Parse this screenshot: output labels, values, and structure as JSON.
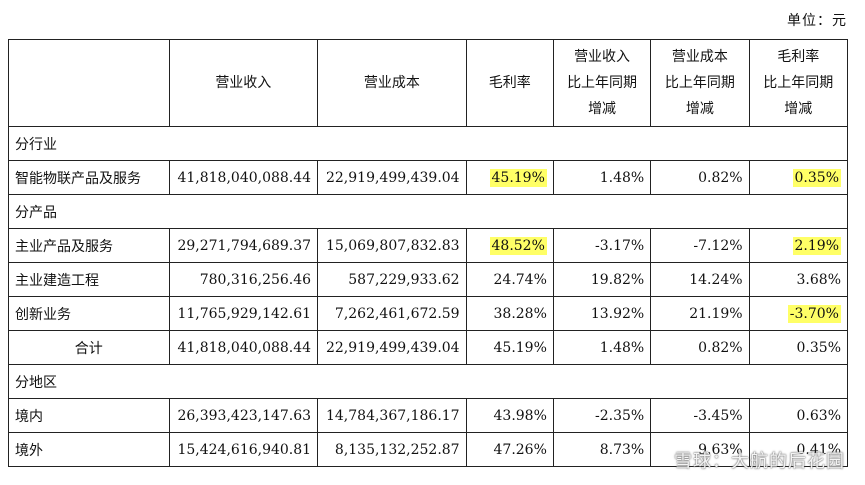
{
  "unit_label": "单位：元",
  "headers": [
    "",
    "营业收入",
    "营业成本",
    "毛利率",
    "营业收入\n比上年同期\n增减",
    "营业成本\n比上年同期\n增减",
    "毛利率\n比上年同期\n增减"
  ],
  "sections": [
    {
      "title": "分行业",
      "rows": [
        {
          "label": "智能物联产品及服务",
          "revenue": "41,818,040,088.44",
          "cost": "22,919,499,439.04",
          "margin": "45.19%",
          "rev_change": "1.48%",
          "cost_change": "0.82%",
          "margin_change": "0.35%",
          "hl_margin": true,
          "hl_margin_change": true
        }
      ]
    },
    {
      "title": "分产品",
      "rows": [
        {
          "label": "主业产品及服务",
          "revenue": "29,271,794,689.37",
          "cost": "15,069,807,832.83",
          "margin": "48.52%",
          "rev_change": "-3.17%",
          "cost_change": "-7.12%",
          "margin_change": "2.19%",
          "hl_margin": true,
          "hl_margin_change": true
        },
        {
          "label": "主业建造工程",
          "revenue": "780,316,256.46",
          "cost": "587,229,933.62",
          "margin": "24.74%",
          "rev_change": "19.82%",
          "cost_change": "14.24%",
          "margin_change": "3.68%"
        },
        {
          "label": "创新业务",
          "revenue": "11,765,929,142.61",
          "cost": "7,262,461,672.59",
          "margin": "38.28%",
          "rev_change": "13.92%",
          "cost_change": "21.19%",
          "margin_change": "-3.70%",
          "hl_margin_change": true
        },
        {
          "label": "合计",
          "revenue": "41,818,040,088.44",
          "cost": "22,919,499,439.04",
          "margin": "45.19%",
          "rev_change": "1.48%",
          "cost_change": "0.82%",
          "margin_change": "0.35%",
          "is_total": true
        }
      ]
    },
    {
      "title": "分地区",
      "rows": [
        {
          "label": "境内",
          "revenue": "26,393,423,147.63",
          "cost": "14,784,367,186.17",
          "margin": "43.98%",
          "rev_change": "-2.35%",
          "cost_change": "-3.45%",
          "margin_change": "0.63%"
        },
        {
          "label": "境外",
          "revenue": "15,424,616,940.81",
          "cost": "8,135,132,252.87",
          "margin": "47.26%",
          "rev_change": "8.73%",
          "cost_change": "9.63%",
          "margin_change": "0.41%"
        }
      ]
    }
  ],
  "watermark": "雪球：大航的后花园",
  "colors": {
    "highlight": "#ffff66",
    "border": "#222222"
  }
}
